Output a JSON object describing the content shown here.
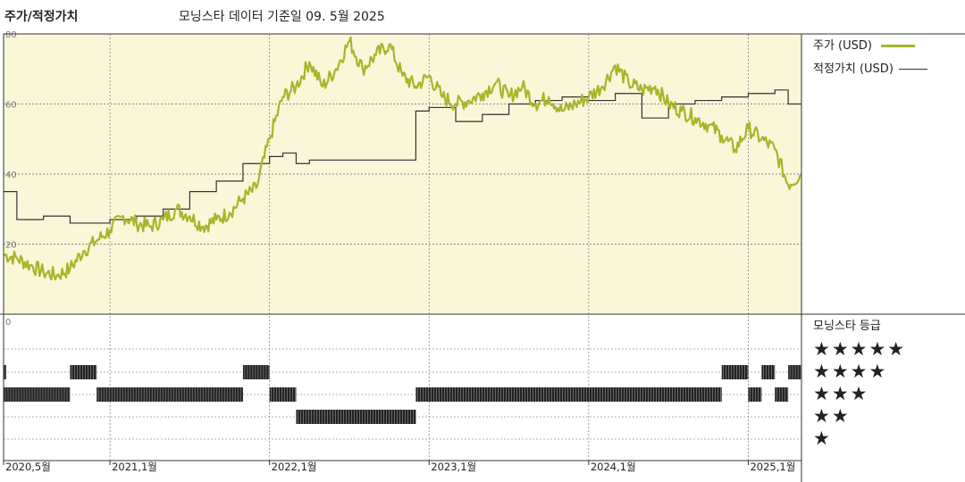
{
  "header": {
    "title": "주가/적정가치",
    "subtitle": "모닝스타 데이터 기준일 09. 5월 2025"
  },
  "colors": {
    "price": "#a8b52b",
    "fair_value": "#333333",
    "plot_background": "#faf6d8",
    "rating_bar": "#222222"
  },
  "legend": {
    "price_label": "주가 (USD)",
    "fair_value_label": "적정가치 (USD)",
    "rating_title": "모닝스타 등급"
  },
  "rating_levels": [
    {
      "stars": 5,
      "label": "★★★★★"
    },
    {
      "stars": 4,
      "label": "★★★★"
    },
    {
      "stars": 3,
      "label": "★★★"
    },
    {
      "stars": 2,
      "label": "★★"
    },
    {
      "stars": 1,
      "label": "★"
    }
  ],
  "chart_data": {
    "type": "line",
    "x_range": [
      "2020-05",
      "2025-05"
    ],
    "ylim": [
      0,
      80
    ],
    "y_ticks": [
      {
        "value": 80,
        "label": "80"
      },
      {
        "value": 60,
        "label": "60"
      },
      {
        "value": 40,
        "label": "40"
      },
      {
        "value": 20,
        "label": "20"
      }
    ],
    "rating_axis_label": "0",
    "x_ticks": [
      {
        "x": "2020-05",
        "label": "2020,5월"
      },
      {
        "x": "2021-01",
        "label": "2021,1월"
      },
      {
        "x": "2022-01",
        "label": "2022,1월"
      },
      {
        "x": "2023-01",
        "label": "2023,1월"
      },
      {
        "x": "2024-01",
        "label": "2024,1월"
      },
      {
        "x": "2025-01",
        "label": "2025,1월"
      }
    ],
    "grid": true,
    "legend_position": "right",
    "series": [
      {
        "name": "주가 (USD)",
        "points": [
          [
            "2020-05",
            17
          ],
          [
            "2020-06",
            16
          ],
          [
            "2020-07",
            14
          ],
          [
            "2020-08",
            12
          ],
          [
            "2020-09",
            11
          ],
          [
            "2020-10",
            13
          ],
          [
            "2020-11",
            18
          ],
          [
            "2020-12",
            21
          ],
          [
            "2021-01",
            24
          ],
          [
            "2021-02",
            28
          ],
          [
            "2021-03",
            26
          ],
          [
            "2021-04",
            25
          ],
          [
            "2021-05",
            27
          ],
          [
            "2021-06",
            30
          ],
          [
            "2021-07",
            28
          ],
          [
            "2021-08",
            25
          ],
          [
            "2021-09",
            27
          ],
          [
            "2021-10",
            29
          ],
          [
            "2021-11",
            33
          ],
          [
            "2021-12",
            36
          ],
          [
            "2022-01",
            50
          ],
          [
            "2022-02",
            62
          ],
          [
            "2022-03",
            65
          ],
          [
            "2022-04",
            72
          ],
          [
            "2022-05",
            65
          ],
          [
            "2022-06",
            70
          ],
          [
            "2022-07",
            78
          ],
          [
            "2022-08",
            70
          ],
          [
            "2022-09",
            74
          ],
          [
            "2022-10",
            77
          ],
          [
            "2022-11",
            68
          ],
          [
            "2022-12",
            65
          ],
          [
            "2023-01",
            68
          ],
          [
            "2023-02",
            62
          ],
          [
            "2023-03",
            60
          ],
          [
            "2023-04",
            61
          ],
          [
            "2023-05",
            63
          ],
          [
            "2023-06",
            66
          ],
          [
            "2023-07",
            62
          ],
          [
            "2023-08",
            65
          ],
          [
            "2023-09",
            60
          ],
          [
            "2023-10",
            62
          ],
          [
            "2023-11",
            58
          ],
          [
            "2023-12",
            60
          ],
          [
            "2024-01",
            62
          ],
          [
            "2024-02",
            65
          ],
          [
            "2024-03",
            71
          ],
          [
            "2024-04",
            66
          ],
          [
            "2024-05",
            64
          ],
          [
            "2024-06",
            65
          ],
          [
            "2024-07",
            60
          ],
          [
            "2024-08",
            58
          ],
          [
            "2024-09",
            56
          ],
          [
            "2024-10",
            54
          ],
          [
            "2024-11",
            51
          ],
          [
            "2024-12",
            47
          ],
          [
            "2025-01",
            53
          ],
          [
            "2025-02",
            50
          ],
          [
            "2025-03",
            47
          ],
          [
            "2025-04",
            37
          ],
          [
            "2025-05",
            40
          ]
        ]
      },
      {
        "name": "적정가치 (USD)",
        "points": [
          [
            "2020-05",
            35
          ],
          [
            "2020-06",
            27
          ],
          [
            "2020-08",
            28
          ],
          [
            "2020-10",
            26
          ],
          [
            "2021-01",
            27
          ],
          [
            "2021-03",
            28
          ],
          [
            "2021-05",
            30
          ],
          [
            "2021-07",
            35
          ],
          [
            "2021-09",
            38
          ],
          [
            "2021-11",
            43
          ],
          [
            "2022-01",
            45
          ],
          [
            "2022-02",
            46
          ],
          [
            "2022-03",
            43
          ],
          [
            "2022-04",
            44
          ],
          [
            "2022-12",
            58
          ],
          [
            "2023-01",
            59
          ],
          [
            "2023-03",
            55
          ],
          [
            "2023-05",
            57
          ],
          [
            "2023-07",
            60
          ],
          [
            "2023-09",
            61
          ],
          [
            "2023-11",
            62
          ],
          [
            "2024-01",
            61
          ],
          [
            "2024-03",
            63
          ],
          [
            "2024-05",
            56
          ],
          [
            "2024-07",
            60
          ],
          [
            "2024-09",
            61
          ],
          [
            "2024-11",
            62
          ],
          [
            "2025-01",
            63
          ],
          [
            "2025-03",
            64
          ],
          [
            "2025-04",
            60
          ],
          [
            "2025-05",
            60
          ]
        ]
      }
    ],
    "rating_history": [
      {
        "stars": 4,
        "from": "2020-05",
        "to": "2020-05"
      },
      {
        "stars": 3,
        "from": "2020-05",
        "to": "2020-10"
      },
      {
        "stars": 4,
        "from": "2020-10",
        "to": "2020-12"
      },
      {
        "stars": 3,
        "from": "2020-12",
        "to": "2021-11"
      },
      {
        "stars": 4,
        "from": "2021-11",
        "to": "2022-01"
      },
      {
        "stars": 3,
        "from": "2022-01",
        "to": "2022-03"
      },
      {
        "stars": 2,
        "from": "2022-03",
        "to": "2022-12"
      },
      {
        "stars": 3,
        "from": "2022-12",
        "to": "2024-11"
      },
      {
        "stars": 4,
        "from": "2024-11",
        "to": "2025-01"
      },
      {
        "stars": 3,
        "from": "2025-01",
        "to": "2025-02"
      },
      {
        "stars": 4,
        "from": "2025-02",
        "to": "2025-03"
      },
      {
        "stars": 3,
        "from": "2025-03",
        "to": "2025-04"
      },
      {
        "stars": 4,
        "from": "2025-04",
        "to": "2025-05"
      }
    ]
  }
}
